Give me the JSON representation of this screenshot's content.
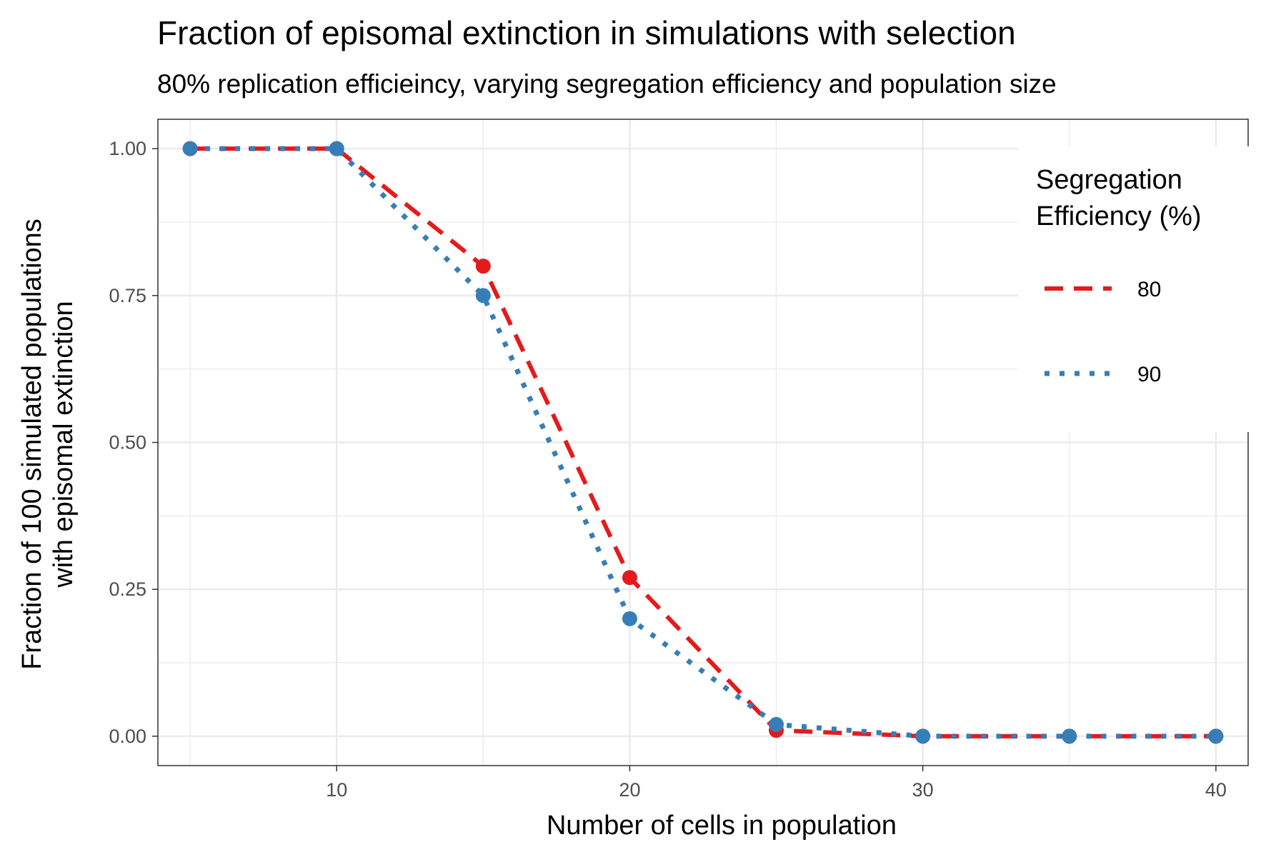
{
  "chart_data": {
    "type": "line",
    "title": "Fraction of episomal extinction in simulations with selection",
    "subtitle": "80% replication efficieincy, varying segregation efficiency and population size",
    "xlabel": "Number of cells in population",
    "ylabel_lines": [
      "Fraction of 100 simulated populations",
      "with episomal extinction"
    ],
    "x": [
      5,
      10,
      15,
      20,
      25,
      30,
      35,
      40
    ],
    "xlim": [
      3.9,
      41.1
    ],
    "ylim": [
      -0.05,
      1.05
    ],
    "x_ticks": [
      10,
      20,
      30,
      40
    ],
    "x_minor_ticks": [
      5,
      15,
      25,
      35
    ],
    "y_ticks": [
      0,
      0.25,
      0.5,
      0.75,
      1.0
    ],
    "y_tick_labels": [
      "0.00",
      "0.25",
      "0.50",
      "0.75",
      "1.00"
    ],
    "y_minor_ticks": [
      0.125,
      0.375,
      0.625,
      0.875
    ],
    "grid": true,
    "legend": {
      "title_lines": [
        "Segregation",
        "Efficiency (%)"
      ],
      "placement": "top-right"
    },
    "series": [
      {
        "name": "80",
        "color": "#e41a1c",
        "line_style": "dashed",
        "values": [
          1.0,
          1.0,
          0.8,
          0.27,
          0.01,
          0.0,
          0.0,
          0.0
        ]
      },
      {
        "name": "90",
        "color": "#377eb8",
        "line_style": "dotted",
        "values": [
          1.0,
          1.0,
          0.75,
          0.2,
          0.02,
          0.0,
          0.0,
          0.0
        ]
      }
    ]
  }
}
